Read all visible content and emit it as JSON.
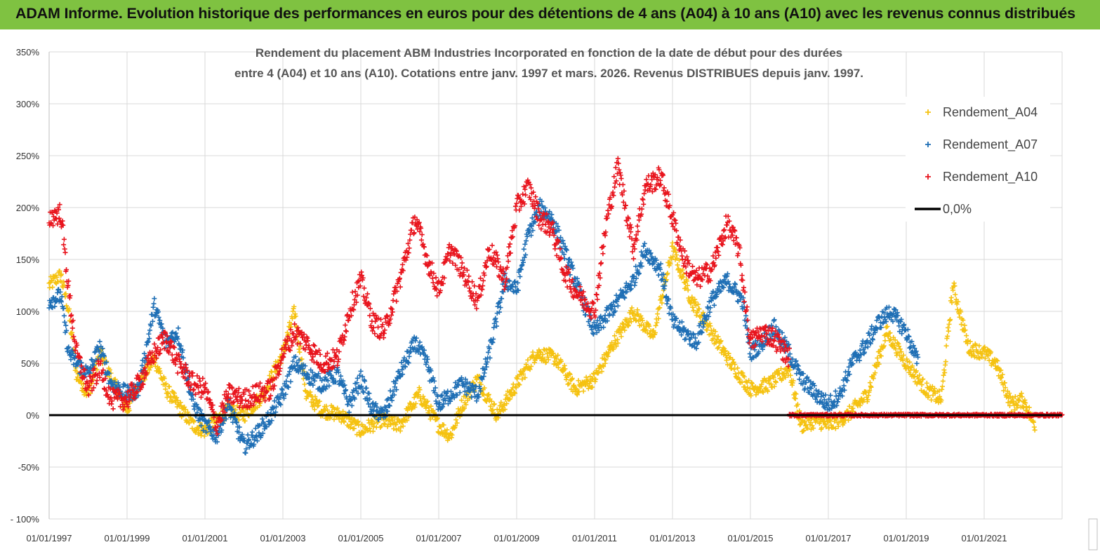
{
  "header": {
    "title": "ADAM Informe. Evolution historique des performances en euros pour des détentions de 4 ans (A04) à 10 ans (A10) avec les revenus connus distribués"
  },
  "chart_data": {
    "type": "scatter",
    "title_line1": "Rendement du placement ABM Industries Incorporated en fonction de la date de début pour des durées",
    "title_line2": "entre 4 (A04) et 10 ans (A10).  Cotations entre janv. 1997 et mars. 2026. Revenus DISTRIBUES depuis janv. 1997.",
    "xlabel": "",
    "ylabel": "",
    "xlim": [
      1997.0,
      2023.0
    ],
    "ylim": [
      -100,
      350
    ],
    "grid": true,
    "legend_position": "top-right",
    "y_ticks": [
      {
        "value": 350,
        "label": "350%"
      },
      {
        "value": 300,
        "label": "300%"
      },
      {
        "value": 250,
        "label": "250%"
      },
      {
        "value": 200,
        "label": "200%"
      },
      {
        "value": 150,
        "label": "150%"
      },
      {
        "value": 100,
        "label": "100%"
      },
      {
        "value": 50,
        "label": "50%"
      },
      {
        "value": 0,
        "label": "0%"
      },
      {
        "value": -50,
        "label": "-50%"
      },
      {
        "value": -100,
        "label": "- 100%"
      }
    ],
    "x_ticks": [
      {
        "value": 1997,
        "label": "01/01/1997"
      },
      {
        "value": 1999,
        "label": "01/01/1999"
      },
      {
        "value": 2001,
        "label": "01/01/2001"
      },
      {
        "value": 2003,
        "label": "01/01/2003"
      },
      {
        "value": 2005,
        "label": "01/01/2005"
      },
      {
        "value": 2007,
        "label": "01/01/2007"
      },
      {
        "value": 2009,
        "label": "01/01/2009"
      },
      {
        "value": 2011,
        "label": "01/01/2011"
      },
      {
        "value": 2013,
        "label": "01/01/2013"
      },
      {
        "value": 2015,
        "label": "01/01/2015"
      },
      {
        "value": 2017,
        "label": "01/01/2017"
      },
      {
        "value": 2019,
        "label": "01/01/2019"
      },
      {
        "value": 2021,
        "label": "01/01/2021"
      }
    ],
    "x_gridlines": [
      1997,
      1999,
      2001,
      2003,
      2005,
      2007,
      2009,
      2011,
      2013,
      2015,
      2017,
      2019,
      2021,
      2023
    ],
    "reference_line": {
      "name": "0,0%",
      "value": 0,
      "color": "#000000",
      "x_range": [
        1997.0,
        2023.0
      ]
    },
    "series": [
      {
        "name": "Rendement_A04",
        "color": "#f5c211",
        "spread": 7,
        "x": [
          1997.0,
          1997.3,
          1997.5,
          1997.7,
          1998.0,
          1998.3,
          1998.6,
          1999.0,
          1999.3,
          1999.7,
          2000.0,
          2000.3,
          2000.7,
          2001.0,
          2001.3,
          2001.6,
          2002.0,
          2002.5,
          2003.0,
          2003.3,
          2003.6,
          2004.0,
          2004.5,
          2005.0,
          2005.5,
          2006.0,
          2006.5,
          2007.0,
          2007.3,
          2007.6,
          2008.0,
          2008.5,
          2009.0,
          2009.5,
          2010.0,
          2010.5,
          2011.0,
          2011.5,
          2012.0,
          2012.5,
          2013.0,
          2013.5,
          2014.0,
          2014.5,
          2015.0,
          2015.5,
          2016.0,
          2016.3,
          2016.7,
          2017.0,
          2017.5,
          2018.0,
          2018.5,
          2019.0,
          2019.5,
          2019.9,
          2020.2,
          2020.6,
          2021.0,
          2021.3,
          2021.7,
          2022.0,
          2022.3
        ],
        "y": [
          125,
          135,
          100,
          40,
          20,
          60,
          35,
          5,
          30,
          55,
          25,
          10,
          -10,
          -15,
          -5,
          5,
          0,
          20,
          60,
          100,
          20,
          5,
          0,
          -15,
          -5,
          -10,
          20,
          -10,
          -20,
          10,
          35,
          0,
          30,
          60,
          55,
          25,
          35,
          70,
          100,
          75,
          160,
          110,
          80,
          50,
          25,
          30,
          45,
          -10,
          -5,
          -10,
          0,
          20,
          80,
          50,
          25,
          15,
          125,
          65,
          60,
          50,
          10,
          15,
          -10
        ]
      },
      {
        "name": "Rendement_A07",
        "color": "#1f6fb5",
        "spread": 8,
        "x": [
          1997.0,
          1997.3,
          1997.5,
          1997.7,
          1998.0,
          1998.3,
          1998.6,
          1999.0,
          1999.3,
          1999.7,
          2000.0,
          2000.3,
          2000.7,
          2001.0,
          2001.3,
          2001.6,
          2002.0,
          2002.3,
          2002.7,
          2003.0,
          2003.3,
          2003.6,
          2004.0,
          2004.4,
          2004.7,
          2005.0,
          2005.3,
          2005.6,
          2006.0,
          2006.4,
          2006.7,
          2007.0,
          2007.3,
          2007.6,
          2008.0,
          2008.3,
          2008.7,
          2009.0,
          2009.3,
          2009.6,
          2009.9,
          2010.2,
          2010.5,
          2011.0,
          2011.3,
          2011.6,
          2012.0,
          2012.3,
          2012.7,
          2013.0,
          2013.3,
          2013.6,
          2014.0,
          2014.4,
          2014.8,
          2015.0,
          2015.3,
          2015.6,
          2016.0,
          2016.3,
          2016.7,
          2017.0,
          2017.3,
          2017.6,
          2018.0,
          2018.3,
          2018.6,
          2019.0,
          2019.3
        ],
        "y": [
          110,
          115,
          60,
          50,
          40,
          65,
          30,
          20,
          25,
          105,
          70,
          80,
          10,
          -10,
          -20,
          10,
          -30,
          -20,
          0,
          20,
          50,
          40,
          30,
          40,
          10,
          35,
          5,
          0,
          40,
          70,
          50,
          10,
          20,
          30,
          20,
          60,
          130,
          120,
          175,
          200,
          190,
          160,
          130,
          80,
          95,
          110,
          130,
          160,
          140,
          90,
          80,
          70,
          110,
          130,
          110,
          60,
          70,
          85,
          60,
          35,
          20,
          10,
          20,
          50,
          70,
          90,
          100,
          80,
          50
        ]
      },
      {
        "name": "Rendement_A10",
        "color": "#e8141d",
        "spread": 10,
        "x": [
          1997.0,
          1997.3,
          1997.5,
          1997.7,
          1998.0,
          1998.3,
          1998.6,
          1999.0,
          1999.3,
          1999.7,
          2000.0,
          2000.3,
          2000.7,
          2001.0,
          2001.3,
          2001.6,
          2002.0,
          2002.3,
          2002.7,
          2003.0,
          2003.3,
          2003.6,
          2004.0,
          2004.4,
          2004.7,
          2005.0,
          2005.3,
          2005.6,
          2006.0,
          2006.4,
          2006.7,
          2007.0,
          2007.3,
          2007.6,
          2008.0,
          2008.3,
          2008.7,
          2009.0,
          2009.3,
          2009.6,
          2009.9,
          2010.2,
          2010.5,
          2011.0,
          2011.3,
          2011.6,
          2012.0,
          2012.3,
          2012.7,
          2013.0,
          2013.3,
          2013.6,
          2014.0,
          2014.4,
          2014.7,
          2015.0,
          2015.3,
          2015.6,
          2016.0
        ],
        "y": [
          190,
          195,
          120,
          60,
          25,
          45,
          15,
          15,
          30,
          60,
          75,
          50,
          30,
          25,
          -10,
          20,
          15,
          20,
          25,
          60,
          80,
          70,
          50,
          55,
          100,
          130,
          90,
          80,
          130,
          190,
          150,
          120,
          160,
          140,
          110,
          160,
          130,
          200,
          220,
          190,
          180,
          140,
          120,
          100,
          185,
          240,
          160,
          220,
          230,
          190,
          150,
          130,
          140,
          185,
          160,
          70,
          80,
          75,
          55
        ]
      },
      {
        "name": "Rendement_A10",
        "color": "#e8141d",
        "spread": 1,
        "x": [
          2016.0,
          2016.5,
          2017.0,
          2017.5,
          2018.0,
          2018.5,
          2019.0,
          2019.5,
          2020.0,
          2020.5,
          2021.0,
          2021.5,
          2022.0,
          2022.5,
          2023.0
        ],
        "y": [
          0,
          0,
          0,
          0,
          0,
          0,
          0,
          0,
          0,
          0,
          0,
          0,
          0,
          0,
          0
        ]
      }
    ],
    "legend": [
      {
        "label": "Rendement_A04",
        "color": "#f5c211",
        "marker": "+"
      },
      {
        "label": "Rendement_A07",
        "color": "#1f6fb5",
        "marker": "+"
      },
      {
        "label": "Rendement_A10",
        "color": "#e8141d",
        "marker": "+"
      },
      {
        "label": "0,0%",
        "color": "#000000",
        "marker": "line"
      }
    ]
  }
}
